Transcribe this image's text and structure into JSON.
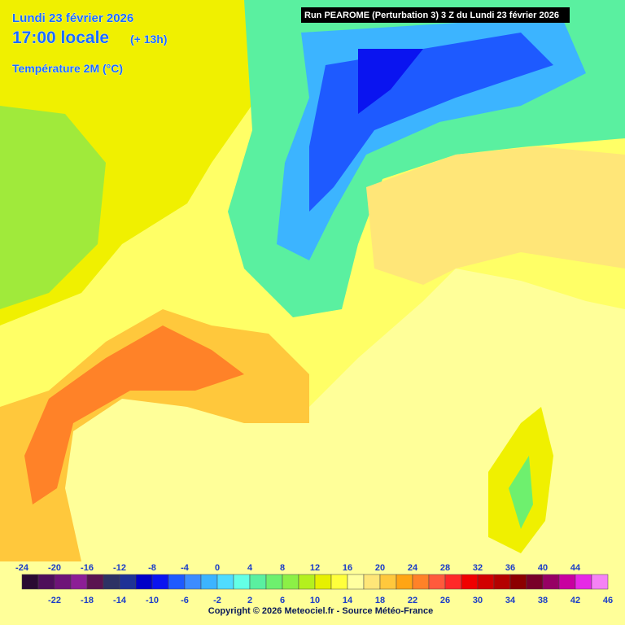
{
  "header": {
    "date": "Lundi 23 février 2026",
    "time": "17:00 locale",
    "offset": "(+ 13h)",
    "variable": "Température 2M (°C)",
    "run": "Run PEAROME (Perturbation 3) 3 Z du Lundi 23 février 2026"
  },
  "legend": {
    "values": [
      -24,
      -22,
      -20,
      -18,
      -16,
      -14,
      -12,
      -10,
      -8,
      -6,
      -4,
      -2,
      0,
      2,
      4,
      6,
      8,
      10,
      12,
      14,
      16,
      18,
      20,
      22,
      24,
      26,
      28,
      30,
      32,
      34,
      36,
      38,
      40,
      42,
      44,
      46
    ],
    "colors": [
      "#2a0a32",
      "#4e0f5a",
      "#6e1478",
      "#8c1e96",
      "#5a1450",
      "#2d3264",
      "#1e3296",
      "#0000c8",
      "#0a14f0",
      "#1e5aff",
      "#3c8cff",
      "#3cb4ff",
      "#50dcff",
      "#64ffe6",
      "#5af0a0",
      "#6ef06e",
      "#8cf046",
      "#b4f01e",
      "#e6f000",
      "#ffff3c",
      "#ffffa0",
      "#ffe678",
      "#ffc83c",
      "#ffa514",
      "#ff8228",
      "#ff5a3c",
      "#ff2828",
      "#f00000",
      "#d20000",
      "#b40000",
      "#8c0000",
      "#780028",
      "#960064",
      "#c800a0",
      "#e628e6",
      "#f582f5"
    ]
  },
  "footer": "Copyright © 2026 Meteociel.fr - Source Météo-France"
}
